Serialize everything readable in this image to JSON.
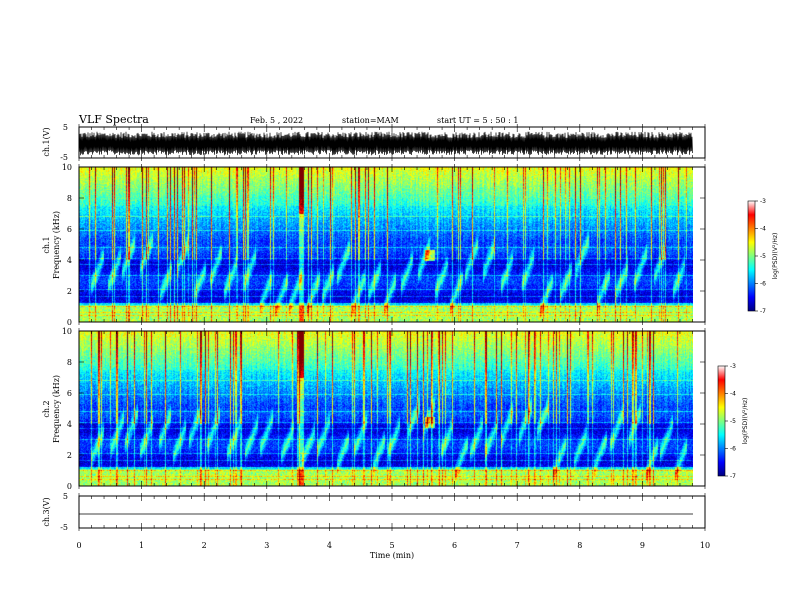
{
  "header": {
    "title": "VLF Spectra",
    "date": "Feb. 5 , 2022",
    "station": "station=MAM",
    "start": "start UT = 5 : 50 : 1"
  },
  "colors": {
    "colormap": [
      "#00007f",
      "#0000ff",
      "#007fff",
      "#00ffff",
      "#7fff7f",
      "#ffff00",
      "#ff7f00",
      "#ff0000",
      "#7f0000"
    ],
    "trace": "#000000",
    "axes": "#000000"
  },
  "chart_data": [
    {
      "type": "line",
      "name": "ch1-waveform",
      "ylabel": "ch.1(V)",
      "ylim": [
        -5,
        5
      ],
      "yticks": [
        5,
        -5
      ],
      "xlim": [
        0,
        10
      ],
      "series": [
        {
          "values_description_range": [
            -4,
            3
          ]
        }
      ]
    },
    {
      "type": "heatmap",
      "name": "ch1-spectrogram",
      "ylabel": "ch.1 Frequency (kHz)",
      "ylim": [
        0,
        10
      ],
      "yticks": [
        0,
        2,
        4,
        6,
        8,
        10
      ],
      "xlim": [
        0,
        9.8
      ],
      "colorbar": {
        "label": "log(PSD)(V²/Hz)",
        "ticks": [
          -3,
          -4,
          -5,
          -6,
          -7
        ],
        "range": [
          -7,
          -3
        ]
      },
      "features": {
        "noise_band_kHz": [
          0,
          1
        ],
        "chorus_band_kHz": [
          1,
          4.5
        ],
        "high_band_kHz": [
          7,
          10
        ],
        "strong_impulse_min": 3.55,
        "emission_min": 5.6,
        "emission_kHz": 4.3
      }
    },
    {
      "type": "heatmap",
      "name": "ch2-spectrogram",
      "ylabel": "ch.2 Frequency (kHz)",
      "ylim": [
        0,
        10
      ],
      "yticks": [
        0,
        2,
        4,
        6,
        8,
        10
      ],
      "xlim": [
        0,
        9.8
      ],
      "colorbar": {
        "label": "log(PSD)(V²/Hz)",
        "ticks": [
          -3,
          -4,
          -5,
          -6,
          -7
        ],
        "range": [
          -7,
          -3
        ]
      },
      "features": {
        "noise_band_kHz": [
          0,
          1
        ],
        "chorus_band_kHz": [
          1,
          4.5
        ],
        "high_band_kHz": [
          7,
          10
        ],
        "strong_impulse_min": 3.55,
        "emission_min": 5.6,
        "emission_kHz": 4.1
      }
    },
    {
      "type": "line",
      "name": "ch3-waveform",
      "ylabel": "ch.3(V)",
      "ylim": [
        -5,
        5
      ],
      "yticks": [
        5,
        0,
        -5
      ],
      "xlim": [
        0,
        10
      ],
      "series": [
        {
          "constant_value": -1.5
        }
      ]
    }
  ],
  "xaxis": {
    "label": "Time (min)",
    "ticks": [
      "0",
      "1",
      "2",
      "3",
      "4",
      "5",
      "6",
      "7",
      "8",
      "9",
      "10"
    ]
  }
}
